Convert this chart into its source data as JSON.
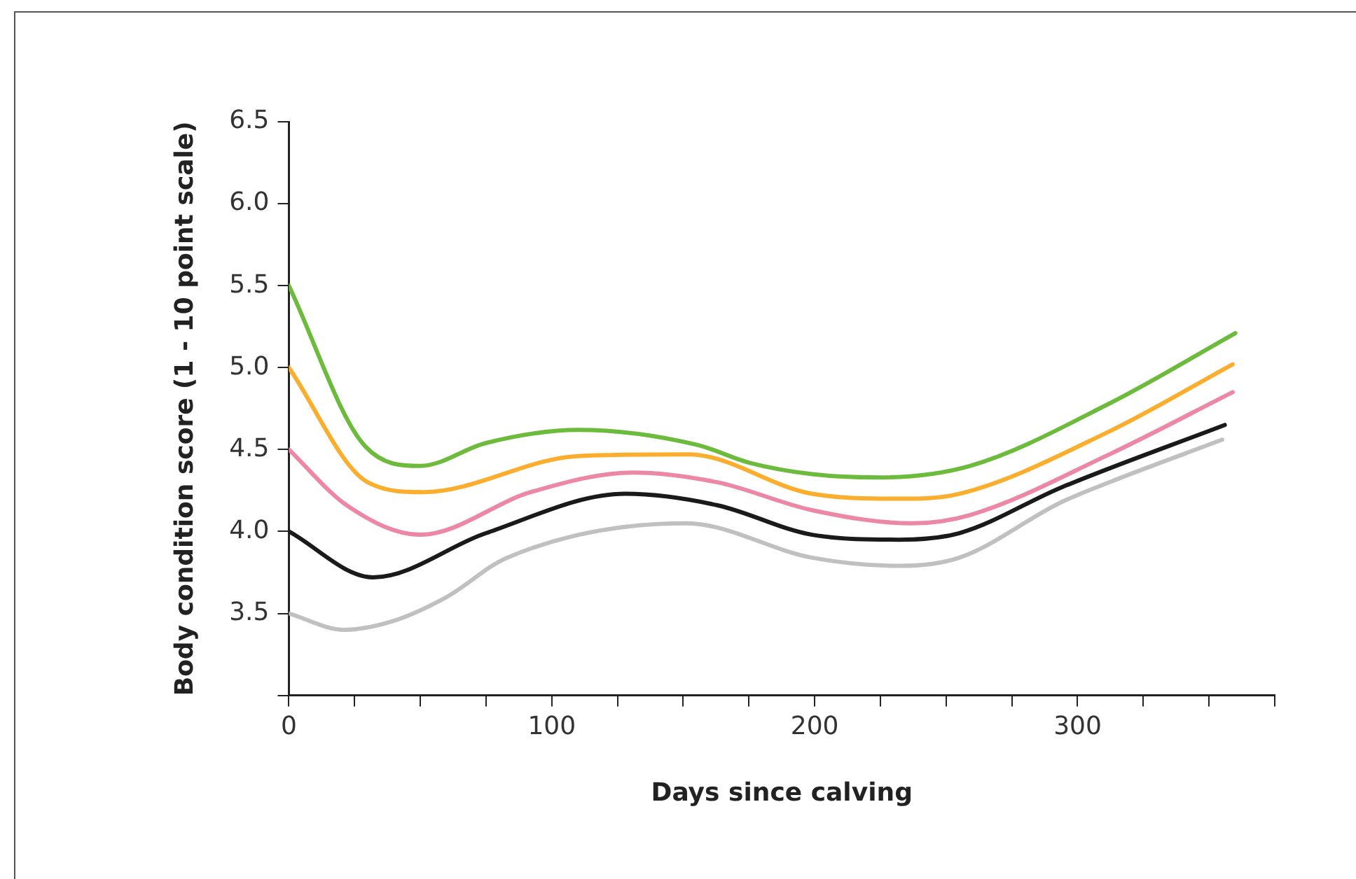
{
  "chart_data": {
    "type": "line",
    "xlabel": "Days since calving",
    "ylabel": "Body condition score (1 - 10 point scale)",
    "xlim": [
      0,
      375
    ],
    "ylim": [
      3,
      6.5
    ],
    "xticks": [
      0,
      {
        "value": 25,
        "label": null
      },
      {
        "value": 50,
        "label": null
      },
      {
        "value": 75,
        "label": null
      },
      100,
      {
        "value": 125,
        "label": null
      },
      {
        "value": 150,
        "label": null
      },
      {
        "value": 175,
        "label": null
      },
      200,
      {
        "value": 225,
        "label": null
      },
      {
        "value": 250,
        "label": null
      },
      {
        "value": 275,
        "label": null
      },
      300,
      {
        "value": 325,
        "label": null
      },
      {
        "value": 350,
        "label": null
      },
      {
        "value": 375,
        "label": null
      }
    ],
    "yticks": [
      {
        "value": 3,
        "label": null
      },
      3.5,
      {
        "value": 4,
        "label": "4.0"
      },
      4.5,
      {
        "value": 5,
        "label": "5.0"
      },
      5.5,
      {
        "value": 6,
        "label": "6.0"
      },
      6.5
    ],
    "grid": false,
    "legend": false,
    "marker": "none",
    "line_style": "solid",
    "series": [
      {
        "color": "#6dbb3c",
        "x": [
          0,
          29,
          50,
          75,
          110,
          155,
          175,
          199,
          224,
          259,
          312,
          360
        ],
        "values": [
          5.5,
          4.52,
          4.4,
          4.54,
          4.62,
          4.53,
          4.42,
          4.35,
          4.33,
          4.4,
          4.78,
          5.21
        ]
      },
      {
        "color": "#fbae2d",
        "x": [
          0,
          30,
          51,
          110,
          152,
          199,
          232,
          255,
          312,
          359
        ],
        "values": [
          5.0,
          4.3,
          4.24,
          4.46,
          4.47,
          4.23,
          4.2,
          4.23,
          4.61,
          5.02
        ]
      },
      {
        "color": "#ec87a5",
        "x": [
          0,
          22,
          50,
          92,
          131,
          163,
          199,
          237,
          259,
          312,
          359
        ],
        "values": [
          4.5,
          4.16,
          3.98,
          4.24,
          4.36,
          4.3,
          4.13,
          4.05,
          4.1,
          4.47,
          4.85
        ]
      },
      {
        "color": "#1a1a1a",
        "x": [
          0,
          32,
          75,
          128,
          163,
          199,
          232,
          255,
          294,
          356
        ],
        "values": [
          4.0,
          3.72,
          3.99,
          4.23,
          4.16,
          3.98,
          3.95,
          3.99,
          4.27,
          4.65
        ]
      },
      {
        "color": "#c0c0c0",
        "x": [
          0,
          21,
          39,
          60,
          83,
          151,
          199,
          232,
          255,
          294,
          312,
          355
        ],
        "values": [
          3.5,
          3.4,
          3.45,
          3.6,
          3.84,
          4.05,
          3.84,
          3.79,
          3.84,
          4.18,
          4.3,
          4.56
        ]
      }
    ]
  }
}
